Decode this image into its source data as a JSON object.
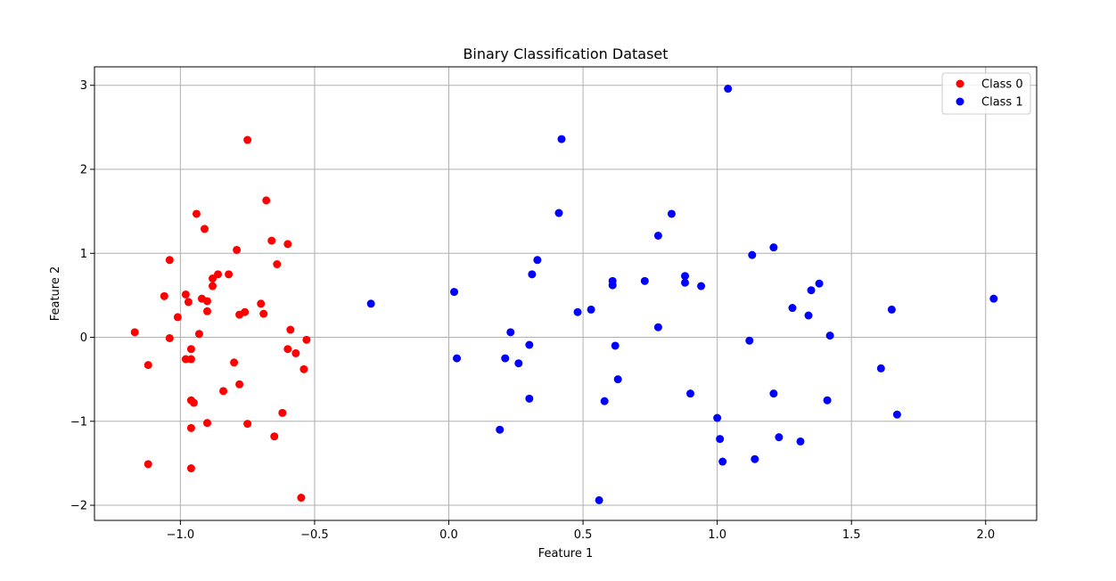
{
  "chart_data": {
    "type": "scatter",
    "title": "Binary Classification Dataset",
    "xlabel": "Feature 1",
    "ylabel": "Feature 2",
    "xlim": [
      -1.32,
      2.19
    ],
    "ylim": [
      -2.18,
      3.22
    ],
    "xticks": [
      -1.0,
      -0.5,
      0.0,
      0.5,
      1.0,
      1.5,
      2.0
    ],
    "xtick_labels": [
      "−1.0",
      "−0.5",
      "0.0",
      "0.5",
      "1.0",
      "1.5",
      "2.0"
    ],
    "yticks": [
      -2,
      -1,
      0,
      1,
      2,
      3
    ],
    "ytick_labels": [
      "−2",
      "−1",
      "0",
      "1",
      "2",
      "3"
    ],
    "grid": true,
    "legend_position": "top-right",
    "series": [
      {
        "name": "Class 0",
        "color": "#ff0000",
        "points": [
          [
            -0.75,
            2.35
          ],
          [
            -0.68,
            1.63
          ],
          [
            -0.94,
            1.47
          ],
          [
            -0.91,
            1.29
          ],
          [
            -0.66,
            1.15
          ],
          [
            -0.6,
            1.11
          ],
          [
            -0.79,
            1.04
          ],
          [
            -1.04,
            0.92
          ],
          [
            -0.64,
            0.87
          ],
          [
            -0.86,
            0.75
          ],
          [
            -0.82,
            0.75
          ],
          [
            -0.88,
            0.7
          ],
          [
            -0.88,
            0.61
          ],
          [
            -0.98,
            0.51
          ],
          [
            -1.06,
            0.49
          ],
          [
            -0.92,
            0.46
          ],
          [
            -0.9,
            0.43
          ],
          [
            -0.97,
            0.42
          ],
          [
            -0.7,
            0.4
          ],
          [
            -0.9,
            0.31
          ],
          [
            -0.76,
            0.3
          ],
          [
            -0.69,
            0.28
          ],
          [
            -0.78,
            0.27
          ],
          [
            -1.01,
            0.24
          ],
          [
            -0.59,
            0.09
          ],
          [
            -1.17,
            0.06
          ],
          [
            -0.93,
            0.04
          ],
          [
            -1.04,
            -0.01
          ],
          [
            -0.53,
            -0.03
          ],
          [
            -0.96,
            -0.14
          ],
          [
            -0.6,
            -0.14
          ],
          [
            -0.57,
            -0.19
          ],
          [
            -0.98,
            -0.26
          ],
          [
            -0.96,
            -0.26
          ],
          [
            -0.8,
            -0.3
          ],
          [
            -1.12,
            -0.33
          ],
          [
            -0.54,
            -0.38
          ],
          [
            -0.78,
            -0.56
          ],
          [
            -0.84,
            -0.64
          ],
          [
            -0.96,
            -0.75
          ],
          [
            -0.95,
            -0.78
          ],
          [
            -0.62,
            -0.9
          ],
          [
            -0.9,
            -1.02
          ],
          [
            -0.75,
            -1.03
          ],
          [
            -0.96,
            -1.08
          ],
          [
            -0.65,
            -1.18
          ],
          [
            -1.12,
            -1.51
          ],
          [
            -0.96,
            -1.56
          ],
          [
            -0.55,
            -1.91
          ]
        ]
      },
      {
        "name": "Class 1",
        "color": "#0000ff",
        "points": [
          [
            1.04,
            2.96
          ],
          [
            0.42,
            2.36
          ],
          [
            0.41,
            1.48
          ],
          [
            0.83,
            1.47
          ],
          [
            0.78,
            1.21
          ],
          [
            1.21,
            1.07
          ],
          [
            1.13,
            0.98
          ],
          [
            0.33,
            0.92
          ],
          [
            0.31,
            0.75
          ],
          [
            0.88,
            0.73
          ],
          [
            0.61,
            0.67
          ],
          [
            0.73,
            0.67
          ],
          [
            0.88,
            0.65
          ],
          [
            1.38,
            0.64
          ],
          [
            0.61,
            0.62
          ],
          [
            0.94,
            0.61
          ],
          [
            1.35,
            0.56
          ],
          [
            0.02,
            0.54
          ],
          [
            2.03,
            0.46
          ],
          [
            -0.29,
            0.4
          ],
          [
            1.28,
            0.35
          ],
          [
            1.65,
            0.33
          ],
          [
            0.53,
            0.33
          ],
          [
            0.48,
            0.3
          ],
          [
            1.34,
            0.26
          ],
          [
            0.78,
            0.12
          ],
          [
            0.23,
            0.06
          ],
          [
            1.42,
            0.02
          ],
          [
            1.12,
            -0.04
          ],
          [
            0.3,
            -0.09
          ],
          [
            0.62,
            -0.1
          ],
          [
            0.03,
            -0.25
          ],
          [
            0.21,
            -0.25
          ],
          [
            0.26,
            -0.31
          ],
          [
            1.61,
            -0.37
          ],
          [
            0.63,
            -0.5
          ],
          [
            0.9,
            -0.67
          ],
          [
            1.21,
            -0.67
          ],
          [
            0.3,
            -0.73
          ],
          [
            1.41,
            -0.75
          ],
          [
            0.58,
            -0.76
          ],
          [
            1.67,
            -0.92
          ],
          [
            1.0,
            -0.96
          ],
          [
            0.19,
            -1.1
          ],
          [
            1.23,
            -1.19
          ],
          [
            1.01,
            -1.21
          ],
          [
            1.31,
            -1.24
          ],
          [
            1.14,
            -1.45
          ],
          [
            1.02,
            -1.48
          ],
          [
            0.56,
            -1.94
          ]
        ]
      }
    ]
  }
}
